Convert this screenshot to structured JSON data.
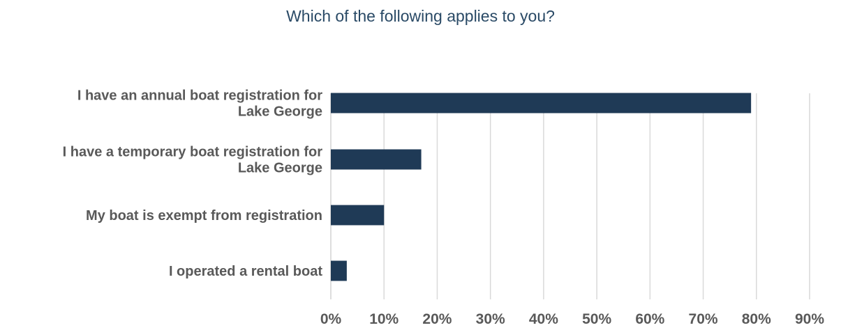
{
  "chart_data": {
    "type": "bar",
    "orientation": "horizontal",
    "title": "Which of the following applies to you?",
    "categories": [
      [
        "I have an annual boat registration for",
        "Lake George"
      ],
      [
        "I have a temporary boat registration for",
        "Lake George"
      ],
      [
        "My boat is exempt from registration"
      ],
      [
        "I operated a rental boat"
      ]
    ],
    "values": [
      0.79,
      0.17,
      0.1,
      0.03
    ],
    "xlim": [
      0,
      0.9
    ],
    "xticks": [
      {
        "value": 0.0,
        "label": "0%"
      },
      {
        "value": 0.1,
        "label": "10%"
      },
      {
        "value": 0.2,
        "label": "20%"
      },
      {
        "value": 0.3,
        "label": "30%"
      },
      {
        "value": 0.4,
        "label": "40%"
      },
      {
        "value": 0.5,
        "label": "50%"
      },
      {
        "value": 0.6,
        "label": "60%"
      },
      {
        "value": 0.7,
        "label": "70%"
      },
      {
        "value": 0.8,
        "label": "80%"
      },
      {
        "value": 0.9,
        "label": "90%"
      }
    ],
    "grid": true,
    "legend": "none",
    "bar_color": "#1f3a56",
    "grid_color": "#d9d9d9",
    "label_color": "#595959",
    "title_color": "#2a4a66"
  }
}
